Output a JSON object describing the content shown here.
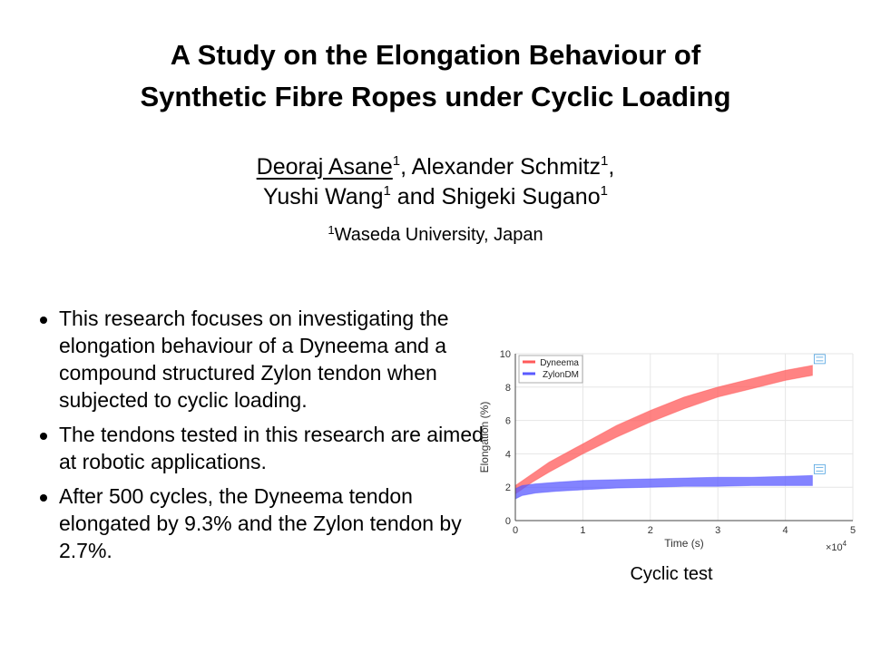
{
  "slide": {
    "title_line1": "A Study on the Elongation Behaviour of",
    "title_line2": "Synthetic Fibre Ropes under Cyclic Loading",
    "authors": {
      "a1": "Deoraj Asane",
      "a1_sup": "1",
      "sep1": ", ",
      "a2": "Alexander Schmitz",
      "a2_sup": "1",
      "sep2": ",",
      "a3": "Yushi Wang",
      "a3_sup": "1",
      "sep3": " and ",
      "a4": "Shigeki Sugano",
      "a4_sup": "1"
    },
    "affiliation_sup": "1",
    "affiliation": "Waseda University, Japan",
    "bullets": [
      "This research focuses on investigating the elongation behaviour of a Dyneema and a compound structured Zylon tendon when subjected to cyclic loading.",
      "The tendons tested in this research are aimed at robotic applications.",
      "After 500 cycles, the Dyneema tendon elongated by 9.3% and the Zylon tendon by 2.7%."
    ],
    "figure_caption": "Cyclic test"
  },
  "chart_data": {
    "type": "area",
    "xlabel": "Time (s)",
    "ylabel": "Elongation (%)",
    "x_multiplier_label": "×10",
    "x_multiplier_exp": "4",
    "xlim": [
      0,
      5
    ],
    "ylim": [
      0,
      10
    ],
    "x_ticks": [
      "0",
      "1",
      "2",
      "3",
      "4",
      "5"
    ],
    "y_ticks": [
      "0",
      "2",
      "4",
      "6",
      "8",
      "10"
    ],
    "grid": true,
    "legend_position": "top-left",
    "series": [
      {
        "name": "Dyneema",
        "color": "#ff5a5a",
        "x": [
          0,
          0.25,
          0.5,
          1,
          1.5,
          2,
          2.5,
          3,
          3.5,
          4,
          4.4
        ],
        "lower": [
          1.6,
          2.3,
          2.9,
          4.0,
          5.0,
          5.9,
          6.7,
          7.4,
          7.9,
          8.4,
          8.7
        ],
        "upper": [
          2.1,
          2.8,
          3.5,
          4.6,
          5.7,
          6.6,
          7.4,
          8.0,
          8.5,
          9.0,
          9.3
        ]
      },
      {
        "name": "ZylonDM",
        "color": "#5a5aff",
        "x": [
          0,
          0.1,
          0.3,
          0.6,
          1,
          1.5,
          2,
          2.5,
          3,
          3.5,
          4,
          4.4
        ],
        "lower": [
          1.3,
          1.5,
          1.65,
          1.75,
          1.85,
          1.95,
          2.0,
          2.05,
          2.05,
          2.1,
          2.1,
          2.1
        ],
        "upper": [
          1.9,
          2.1,
          2.2,
          2.3,
          2.4,
          2.45,
          2.5,
          2.55,
          2.6,
          2.6,
          2.65,
          2.7
        ]
      }
    ]
  }
}
